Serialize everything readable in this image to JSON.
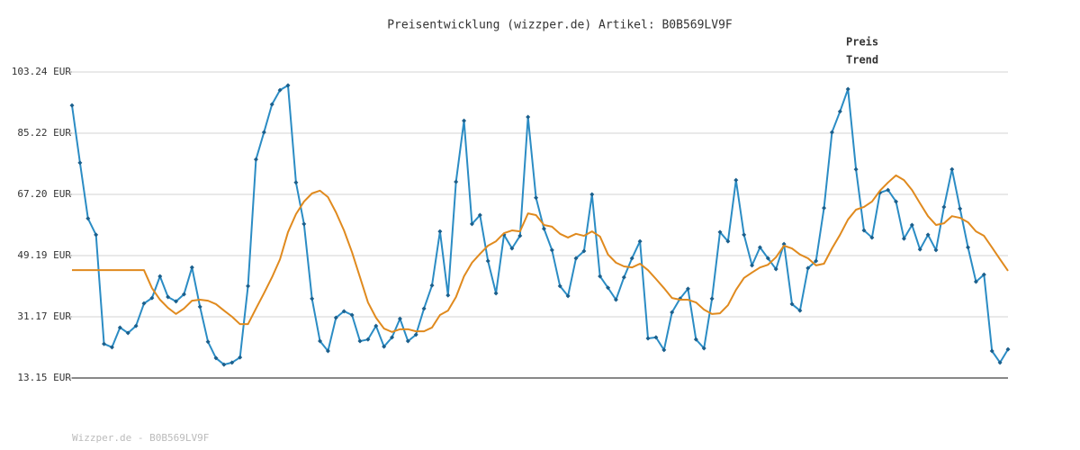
{
  "chart_data": {
    "type": "line",
    "title": "Preisentwicklung (wizzper.de) Artikel: B0B569LV9F",
    "footer": "Wizzper.de - B0B569LV9F",
    "ylim": [
      13.15,
      103.24
    ],
    "yticks": [
      {
        "value": 13.15,
        "label": "13.15 EUR"
      },
      {
        "value": 31.17,
        "label": "31.17 EUR"
      },
      {
        "value": 49.19,
        "label": "49.19 EUR"
      },
      {
        "value": 67.2,
        "label": "67.20 EUR"
      },
      {
        "value": 85.22,
        "label": "85.22 EUR"
      },
      {
        "value": 103.24,
        "label": "103.24 EUR"
      }
    ],
    "grid": true,
    "legend": "top-right",
    "series": [
      {
        "name": "Preis",
        "color": "#2b8cc4",
        "markers": true,
        "values": [
          93.4,
          76.5,
          60.1,
          55.3,
          23.2,
          22.2,
          28.0,
          26.4,
          28.5,
          35.1,
          36.7,
          43.1,
          37.0,
          35.7,
          37.8,
          45.7,
          34.1,
          23.8,
          19.0,
          17.1,
          17.7,
          19.2,
          40.2,
          77.5,
          85.5,
          93.7,
          97.9,
          99.3,
          70.7,
          58.5,
          36.5,
          24.0,
          21.1,
          30.9,
          32.8,
          31.7,
          24.0,
          24.5,
          28.5,
          22.4,
          25.1,
          30.6,
          24.0,
          25.9,
          33.6,
          40.4,
          56.3,
          37.5,
          70.9,
          88.9,
          58.5,
          61.1,
          47.6,
          38.1,
          55.3,
          51.3,
          55.0,
          90.0,
          66.2,
          57.1,
          50.8,
          40.2,
          37.3,
          48.4,
          50.5,
          67.2,
          43.1,
          39.7,
          36.2,
          42.8,
          48.4,
          53.4,
          24.8,
          25.1,
          21.4,
          32.5,
          36.5,
          39.4,
          24.5,
          21.9,
          36.5,
          56.1,
          53.4,
          71.4,
          55.3,
          46.3,
          51.6,
          48.4,
          45.2,
          52.6,
          34.9,
          33.0,
          45.5,
          47.6,
          63.2,
          85.5,
          91.6,
          98.2,
          74.6,
          56.6,
          54.5,
          67.7,
          68.5,
          65.1,
          54.2,
          58.2,
          51.0,
          55.3,
          50.8,
          63.5,
          74.6,
          63.0,
          51.6,
          41.5,
          43.6,
          21.1,
          17.7,
          21.6
        ]
      },
      {
        "name": "Trend",
        "color": "#e08a1e",
        "markers": false,
        "values": [
          44.9,
          44.9,
          44.9,
          44.9,
          44.9,
          44.9,
          44.9,
          44.9,
          44.9,
          44.9,
          39.6,
          36.2,
          33.8,
          32.0,
          33.6,
          35.9,
          36.2,
          35.9,
          34.9,
          33.0,
          31.2,
          29.0,
          29.0,
          33.6,
          38.1,
          42.8,
          48.1,
          56.1,
          61.4,
          65.1,
          67.5,
          68.3,
          66.4,
          61.9,
          56.6,
          50.2,
          42.8,
          35.4,
          30.9,
          27.7,
          26.7,
          27.5,
          27.5,
          26.9,
          26.9,
          28.0,
          31.7,
          33.0,
          37.0,
          43.1,
          47.1,
          49.7,
          52.1,
          53.4,
          55.8,
          56.6,
          56.3,
          61.6,
          61.1,
          58.2,
          57.7,
          55.6,
          54.5,
          55.6,
          55.0,
          56.3,
          54.8,
          49.5,
          47.1,
          46.0,
          45.7,
          46.8,
          44.9,
          42.3,
          39.6,
          36.7,
          36.2,
          36.2,
          35.4,
          33.3,
          32.0,
          32.2,
          34.6,
          39.1,
          42.6,
          44.2,
          45.7,
          46.5,
          48.7,
          52.1,
          51.3,
          49.5,
          48.4,
          46.3,
          46.8,
          51.3,
          55.3,
          59.8,
          62.7,
          63.5,
          65.1,
          68.3,
          70.7,
          72.8,
          71.4,
          68.5,
          64.6,
          60.8,
          58.2,
          58.7,
          60.8,
          60.3,
          59.0,
          56.3,
          55.0,
          51.6,
          48.1,
          44.7
        ]
      }
    ]
  }
}
